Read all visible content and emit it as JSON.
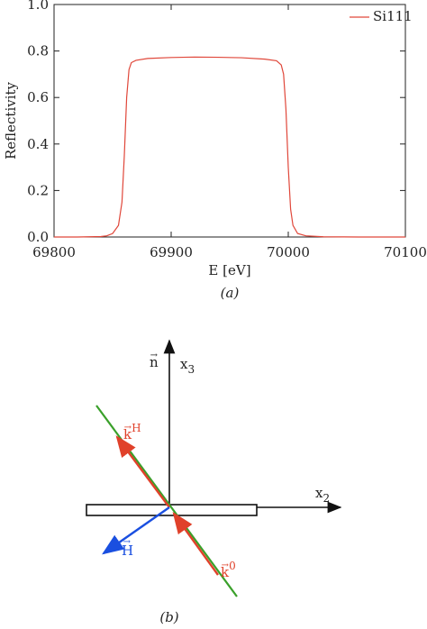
{
  "chart_data": {
    "type": "line",
    "x_label": "E [eV]",
    "y_label": "Reflectivity",
    "caption": "(a)",
    "x": [
      69800,
      69820,
      69840,
      69845,
      69850,
      69855,
      69858,
      69860,
      69862,
      69864,
      69866,
      69870,
      69880,
      69900,
      69920,
      69940,
      69960,
      69980,
      69990,
      69994,
      69996,
      69998,
      70000,
      70002,
      70004,
      70008,
      70015,
      70030,
      70060,
      70100
    ],
    "series": [
      {
        "name": "Si111",
        "color": "#e0473a",
        "values": [
          0,
          0,
          0.002,
          0.005,
          0.015,
          0.05,
          0.15,
          0.35,
          0.6,
          0.72,
          0.75,
          0.76,
          0.768,
          0.772,
          0.774,
          0.773,
          0.771,
          0.765,
          0.758,
          0.74,
          0.7,
          0.55,
          0.3,
          0.12,
          0.05,
          0.015,
          0.005,
          0.001,
          0,
          0
        ]
      }
    ],
    "xlim": [
      69800,
      70100
    ],
    "xticks": [
      69800,
      69900,
      70000,
      70100
    ],
    "ylim": [
      0,
      1
    ],
    "yticks": [
      {
        "value": 0,
        "label": "0.0"
      },
      0.2,
      0.4,
      0.6,
      0.8,
      {
        "value": 1,
        "label": "1.0"
      }
    ],
    "legend": "upper right"
  },
  "diagram": {
    "caption": "(b)",
    "n": {
      "base": "n",
      "arrow": "→"
    },
    "x3": {
      "base": "x",
      "sub": "3"
    },
    "x2": {
      "base": "x",
      "sub": "2"
    },
    "kH": {
      "base": "k",
      "arrow": "→",
      "sup": "H"
    },
    "k0": {
      "base": "k",
      "arrow": "→",
      "sup": "0"
    },
    "H": {
      "base": "H",
      "arrow": "→"
    }
  }
}
